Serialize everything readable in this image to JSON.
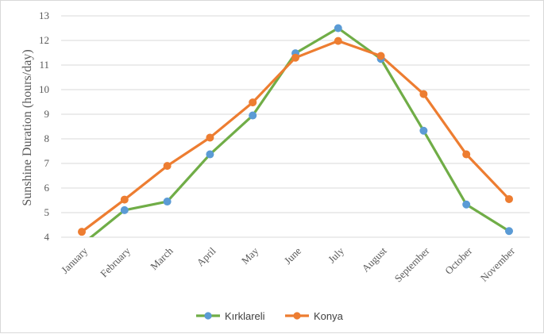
{
  "chart_data": {
    "type": "line",
    "title": "",
    "xlabel": "",
    "ylabel": "Sunshine Duration  (hours/day)",
    "ylim": [
      4,
      13
    ],
    "yticks": [
      4,
      5,
      6,
      7,
      8,
      9,
      10,
      11,
      12,
      13
    ],
    "grid": true,
    "legend_position": "bottom",
    "categories": [
      "January",
      "February",
      "March",
      "April",
      "May",
      "June",
      "July",
      "August",
      "September",
      "October",
      "November"
    ],
    "series": [
      {
        "name": "Kırklareli",
        "color": "#70ad47",
        "marker_color": "#5b9bd5",
        "values": [
          3.7,
          5.1,
          5.45,
          7.37,
          8.95,
          11.48,
          12.5,
          11.25,
          8.33,
          5.33,
          4.25
        ]
      },
      {
        "name": "Konya",
        "color": "#ed7d31",
        "marker_color": "#ed7d31",
        "values": [
          4.22,
          5.53,
          6.9,
          8.05,
          9.48,
          11.3,
          11.98,
          11.37,
          9.82,
          7.37,
          5.55
        ]
      }
    ]
  }
}
